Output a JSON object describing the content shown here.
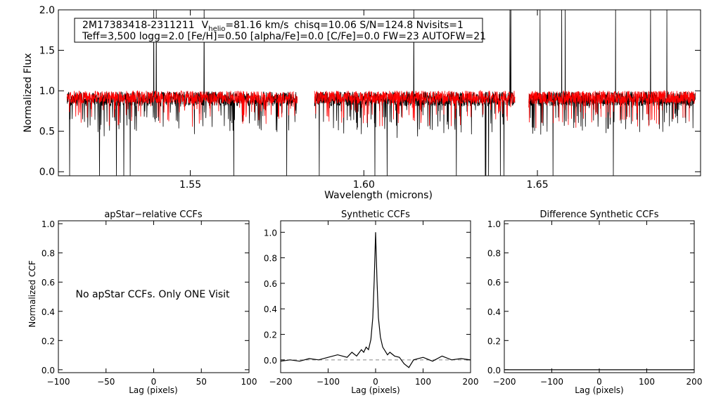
{
  "chart_data": [
    {
      "type": "line",
      "id": "spectrum",
      "info_line1_parts": {
        "star": "2M17383418-2311211",
        "v_label": "V",
        "v_sub": "helio",
        "v_value": "=81.16 km/s",
        "rest": "chisq=10.06  S/N=124.8  Nvisits=1"
      },
      "info_line2": "Teff=3,500 logg=2.0 [Fe/H]=0.50 [alpha/Fe]=0.0 [C/Fe]=0.0 FW=23 AUTOFW=21",
      "xlabel": "Wavelength (microns)",
      "ylabel": "Normalized Flux",
      "xlim": [
        1.512,
        1.697
      ],
      "ylim": [
        -0.05,
        2.0
      ],
      "xticks": [
        "1.55",
        "1.60",
        "1.65"
      ],
      "xtick_values": [
        1.55,
        1.6,
        1.65
      ],
      "yticks": [
        "0.0",
        "0.5",
        "1.0",
        "1.5",
        "2.0"
      ],
      "ytick_values": [
        0.0,
        0.5,
        1.0,
        1.5,
        2.0
      ],
      "chips": [
        [
          1.5145,
          1.5808
        ],
        [
          1.5858,
          1.6435
        ],
        [
          1.6475,
          1.6955
        ]
      ],
      "series": [
        {
          "color": "#000000",
          "note": "observed spectrum"
        },
        {
          "color": "#ff0000",
          "note": "synthetic best fit"
        }
      ]
    },
    {
      "type": "line",
      "id": "apstar_ccf",
      "title": "apStar−relative CCFs",
      "xlabel": "Lag (pixels)",
      "ylabel": "Normalized CCF",
      "xlim": [
        -100,
        100
      ],
      "ylim": [
        -0.02,
        1.02
      ],
      "xticks": [
        "−100",
        "−50",
        "0",
        "50",
        "100"
      ],
      "xtick_values": [
        -100,
        -50,
        0,
        50,
        100
      ],
      "yticks": [
        "0.0",
        "0.2",
        "0.4",
        "0.6",
        "0.8",
        "1.0"
      ],
      "ytick_values": [
        0.0,
        0.2,
        0.4,
        0.6,
        0.8,
        1.0
      ],
      "message": "No apStar CCFs.  Only ONE Visit"
    },
    {
      "type": "line",
      "id": "synthetic_ccf",
      "title": "Synthetic CCFs",
      "xlabel": "Lag (pixels)",
      "xlim": [
        -200,
        200
      ],
      "ylim": [
        -0.1,
        1.09
      ],
      "xticks": [
        "−200",
        "−100",
        "0",
        "100",
        "200"
      ],
      "xtick_values": [
        -200,
        -100,
        0,
        100,
        200
      ],
      "yticks": [
        "0.0",
        "0.2",
        "0.4",
        "0.6",
        "0.8",
        "1.0"
      ],
      "ytick_values": [
        0.0,
        0.2,
        0.4,
        0.6,
        0.8,
        1.0
      ],
      "baseline": 0.0,
      "x": [
        -200,
        -180,
        -160,
        -140,
        -120,
        -100,
        -80,
        -60,
        -50,
        -40,
        -30,
        -25,
        -20,
        -15,
        -10,
        -6,
        -3,
        0,
        3,
        6,
        10,
        15,
        20,
        25,
        30,
        40,
        50,
        60,
        70,
        80,
        100,
        120,
        140,
        160,
        180,
        200
      ],
      "y": [
        -0.01,
        0.0,
        -0.01,
        0.01,
        0.0,
        0.02,
        0.04,
        0.02,
        0.06,
        0.03,
        0.08,
        0.06,
        0.1,
        0.08,
        0.16,
        0.33,
        0.62,
        1.0,
        0.62,
        0.33,
        0.18,
        0.1,
        0.07,
        0.04,
        0.06,
        0.03,
        0.02,
        -0.03,
        -0.06,
        0.0,
        0.02,
        -0.01,
        0.03,
        0.0,
        0.01,
        0.0
      ]
    },
    {
      "type": "line",
      "id": "difference_ccf",
      "title": "Difference Synthetic CCFs",
      "xlabel": "Lag (pixels)",
      "xlim": [
        -200,
        200
      ],
      "ylim": [
        -0.02,
        1.02
      ],
      "xticks": [
        "−200",
        "−100",
        "0",
        "100",
        "200"
      ],
      "xtick_values": [
        -200,
        -100,
        0,
        100,
        200
      ],
      "yticks": [
        "0.0",
        "0.2",
        "0.4",
        "0.6",
        "0.8",
        "1.0"
      ],
      "ytick_values": [
        0.0,
        0.2,
        0.4,
        0.6,
        0.8,
        1.0
      ],
      "x": [
        -200,
        200
      ],
      "y": [
        0.0,
        0.0
      ]
    }
  ]
}
